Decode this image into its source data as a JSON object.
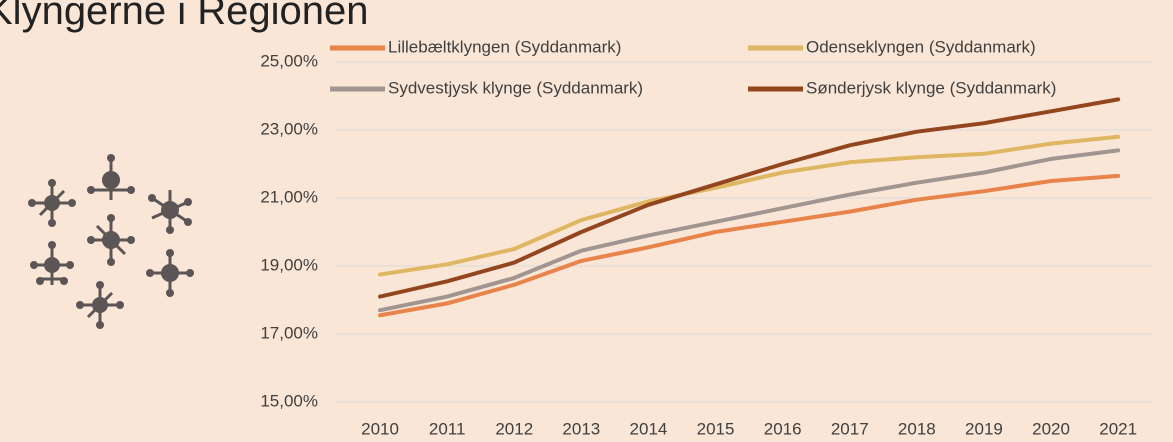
{
  "chart_data": {
    "type": "line",
    "title": "Klyngerne i Regionen",
    "categories": [
      "2010",
      "2011",
      "2012",
      "2013",
      "2014",
      "2015",
      "2016",
      "2017",
      "2018",
      "2019",
      "2020",
      "2021"
    ],
    "series": [
      {
        "name": "Lillebæltklyngen (Syddanmark)",
        "color": "#e8834a",
        "values": [
          17.55,
          17.9,
          18.45,
          19.15,
          19.55,
          20.0,
          20.3,
          20.6,
          20.95,
          21.2,
          21.5,
          21.65
        ]
      },
      {
        "name": "Odenseklyngen (Syddanmark)",
        "color": "#dfb661",
        "values": [
          18.75,
          19.05,
          19.5,
          20.35,
          20.9,
          21.3,
          21.75,
          22.05,
          22.2,
          22.3,
          22.6,
          22.8
        ]
      },
      {
        "name": "Sydvestjysk klynge (Syddanmark)",
        "color": "#a09590",
        "values": [
          17.7,
          18.1,
          18.65,
          19.45,
          19.9,
          20.3,
          20.7,
          21.1,
          21.45,
          21.75,
          22.15,
          22.4
        ]
      },
      {
        "name": "Sønderjysk klynge (Syddanmark)",
        "color": "#93461e",
        "values": [
          18.1,
          18.55,
          19.1,
          20.0,
          20.8,
          21.4,
          22.0,
          22.55,
          22.95,
          23.2,
          23.55,
          23.9
        ]
      }
    ],
    "ylim": [
      15,
      25
    ],
    "yticks": [
      {
        "value": 15,
        "label": "15,00%"
      },
      {
        "value": 17,
        "label": "17,00%"
      },
      {
        "value": 19,
        "label": "19,00%"
      },
      {
        "value": 21,
        "label": "21,00%"
      },
      {
        "value": 23,
        "label": "23,00%"
      },
      {
        "value": 25,
        "label": "25,00%"
      }
    ],
    "grid": true
  }
}
